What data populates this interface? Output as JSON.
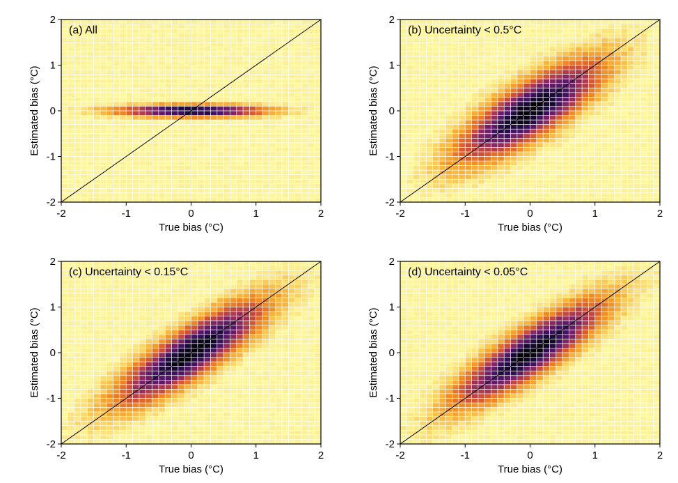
{
  "chart_data": [
    {
      "type": "heatmap",
      "title": "(a) All",
      "xlabel": "True bias (°C)",
      "ylabel": "Estimated bias (°C)",
      "xlim": [
        -2,
        2
      ],
      "ylim": [
        -2,
        2
      ],
      "xticks": [
        "-2",
        "-1",
        "0",
        "1",
        "2"
      ],
      "yticks": [
        "-2",
        "-1",
        "0",
        "1",
        "2"
      ],
      "bins": 40,
      "distribution": {
        "kind": "bivariate-normal",
        "sigma_true": 0.6,
        "sigma_estimated": 0.07,
        "correlation": 0.0
      },
      "reference_line": "y = x",
      "grid": true,
      "colormap": "inferno-reversed"
    },
    {
      "type": "heatmap",
      "title": "(b) Uncertainty < 0.5°C",
      "xlabel": "True bias (°C)",
      "ylabel": "Estimated bias (°C)",
      "xlim": [
        -2,
        2
      ],
      "ylim": [
        -2,
        2
      ],
      "xticks": [
        "-2",
        "-1",
        "0",
        "1",
        "2"
      ],
      "yticks": [
        "-2",
        "-1",
        "0",
        "1",
        "2"
      ],
      "bins": 40,
      "distribution": {
        "kind": "bivariate-normal",
        "sigma_true": 0.58,
        "sigma_estimated": 0.58,
        "correlation": 0.8
      },
      "reference_line": "y = x",
      "grid": true,
      "colormap": "inferno-reversed"
    },
    {
      "type": "heatmap",
      "title": "(c) Uncertainty < 0.15°C",
      "xlabel": "True bias (°C)",
      "ylabel": "Estimated bias (°C)",
      "xlim": [
        -2,
        2
      ],
      "ylim": [
        -2,
        2
      ],
      "xticks": [
        "-2",
        "-1",
        "0",
        "1",
        "2"
      ],
      "yticks": [
        "-2",
        "-1",
        "0",
        "1",
        "2"
      ],
      "bins": 40,
      "distribution": {
        "kind": "bivariate-normal",
        "sigma_true": 0.6,
        "sigma_estimated": 0.6,
        "correlation": 0.85
      },
      "reference_line": "y = x",
      "grid": true,
      "colormap": "inferno-reversed"
    },
    {
      "type": "heatmap",
      "title": "(d) Uncertainty < 0.05°C",
      "xlabel": "True bias (°C)",
      "ylabel": "Estimated bias (°C)",
      "xlim": [
        -2,
        2
      ],
      "ylim": [
        -2,
        2
      ],
      "xticks": [
        "-2",
        "-1",
        "0",
        "1",
        "2"
      ],
      "yticks": [
        "-2",
        "-1",
        "0",
        "1",
        "2"
      ],
      "bins": 40,
      "distribution": {
        "kind": "bivariate-normal",
        "sigma_true": 0.6,
        "sigma_estimated": 0.6,
        "correlation": 0.86
      },
      "reference_line": "y = x",
      "grid": true,
      "colormap": "inferno-reversed"
    }
  ],
  "colors": {
    "background_cell": "#fdfbaa",
    "grid_line": "#ffffff",
    "frame": "#000000",
    "reference_line": "#000000",
    "colormap_stops": [
      "#fdfbaa",
      "#fbe07a",
      "#f7b33a",
      "#f08a22",
      "#d95a2e",
      "#b03a4e",
      "#7c2366",
      "#4a1566",
      "#1c0c3c",
      "#000004"
    ]
  }
}
